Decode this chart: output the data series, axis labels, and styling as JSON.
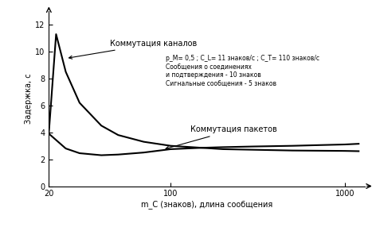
{
  "title": "",
  "ylabel": "Задержка, с",
  "xlabel": "m_C (знаков), длина сообщения",
  "xlim": [
    20,
    1300
  ],
  "ylim": [
    0,
    13
  ],
  "yticks": [
    0,
    2,
    4,
    6,
    8,
    10,
    12
  ],
  "xticks": [
    20,
    100,
    1000
  ],
  "xticklabels": [
    "20",
    "100",
    "1000"
  ],
  "annotation_circuit": "Коммутация каналов",
  "annotation_packet": "Коммутация пакетов",
  "annotation_params": "р_М= 0,5 ; С_L= 11 знаков/с ; С_T= 110 знаков/с\nСообщения о соединениях\nи подтверждения - 10 знаков\nСигнальные сообщения - 5 знаков",
  "circuit_x": [
    20,
    22,
    25,
    30,
    40,
    50,
    70,
    100,
    200,
    500,
    1000,
    1200
  ],
  "circuit_y": [
    4.0,
    11.3,
    8.5,
    6.2,
    4.5,
    3.8,
    3.3,
    3.0,
    2.75,
    2.65,
    2.62,
    2.6
  ],
  "packet_x": [
    20,
    25,
    30,
    40,
    50,
    70,
    100,
    150,
    200,
    300,
    500,
    700,
    1000,
    1200
  ],
  "packet_y": [
    3.9,
    2.8,
    2.45,
    2.3,
    2.35,
    2.5,
    2.75,
    2.85,
    2.9,
    2.95,
    3.0,
    3.05,
    3.1,
    3.15
  ],
  "line_color": "#000000",
  "bg_color": "#ffffff"
}
